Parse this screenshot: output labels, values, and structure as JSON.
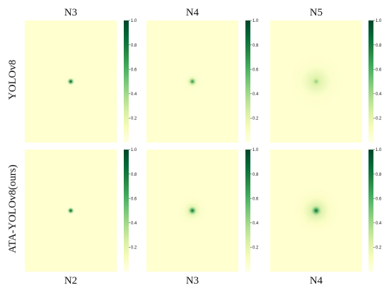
{
  "figure": {
    "row_labels": [
      "YOLOv8",
      "ATA-YOLOv8(ours)"
    ],
    "top_column_labels": [
      "N3",
      "N4",
      "N5"
    ],
    "bottom_column_labels": [
      "N2",
      "N3",
      "N4"
    ]
  },
  "colormap": {
    "name": "YlGn",
    "background": "#ffffd0",
    "stops": [
      "#ffffe5",
      "#f7fcb9",
      "#d9f0a3",
      "#addd8e",
      "#78c679",
      "#41ab5d",
      "#238443",
      "#006837",
      "#004529"
    ]
  },
  "chart_data": [
    {
      "type": "heatmap",
      "row": "YOLOv8",
      "column": "N3",
      "colorbar": {
        "range": [
          0,
          1.0
        ],
        "ticks": [
          "1.0",
          "0.8",
          "0.6",
          "0.4",
          "0.2"
        ]
      },
      "center_peak": 1.0,
      "halo_spread": 0.07,
      "halo_intensity": 0.1,
      "noise": 0.0
    },
    {
      "type": "heatmap",
      "row": "YOLOv8",
      "column": "N4",
      "colorbar": {
        "range": [
          0,
          1.0
        ],
        "ticks": [
          "1.0",
          "0.8",
          "0.6",
          "0.4",
          "0.2"
        ]
      },
      "center_peak": 0.75,
      "halo_spread": 0.12,
      "halo_intensity": 0.12,
      "noise": 0.03
    },
    {
      "type": "heatmap",
      "row": "YOLOv8",
      "column": "N5",
      "colorbar": {
        "range": [
          0,
          1.0
        ],
        "ticks": [
          "1.0",
          "0.8",
          "0.6",
          "0.4",
          "0.2"
        ]
      },
      "center_peak": 0.45,
      "halo_spread": 0.26,
      "halo_intensity": 0.18,
      "noise": 0.1
    },
    {
      "type": "heatmap",
      "row": "ATA-YOLOv8(ours)",
      "column": "N2",
      "colorbar": {
        "range": [
          0,
          1.0
        ],
        "ticks": [
          "1.0",
          "0.8",
          "0.6",
          "0.4",
          "0.2"
        ]
      },
      "center_peak": 1.0,
      "halo_spread": 0.06,
      "halo_intensity": 0.08,
      "noise": 0.0
    },
    {
      "type": "heatmap",
      "row": "ATA-YOLOv8(ours)",
      "column": "N3",
      "colorbar": {
        "range": [
          0,
          1.0
        ],
        "ticks": [
          "1.0",
          "0.8",
          "0.6",
          "0.4",
          "0.2"
        ]
      },
      "center_peak": 0.9,
      "halo_spread": 0.15,
      "halo_intensity": 0.18,
      "noise": 0.04
    },
    {
      "type": "heatmap",
      "row": "ATA-YOLOv8(ours)",
      "column": "N4",
      "colorbar": {
        "range": [
          0,
          1.0
        ],
        "ticks": [
          "1.0",
          "0.8",
          "0.6",
          "0.4",
          "0.2"
        ]
      },
      "center_peak": 0.9,
      "halo_spread": 0.22,
      "halo_intensity": 0.24,
      "noise": 0.08
    }
  ]
}
